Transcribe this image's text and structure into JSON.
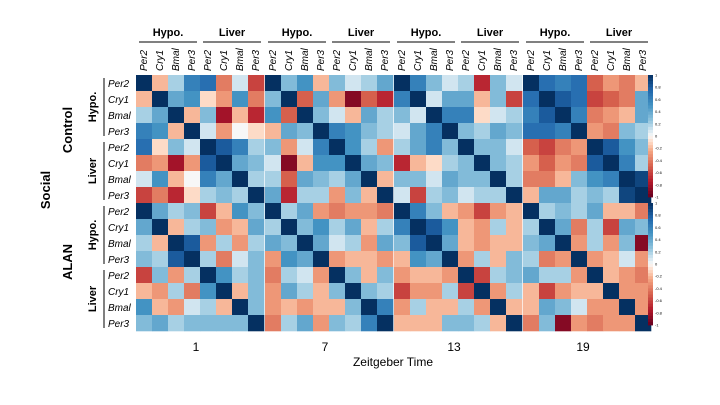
{
  "chart_data": {
    "type": "heatmap",
    "title": "",
    "xlabel": "Zeitgeber Time",
    "outer_label": "Social",
    "conditions": [
      "Control",
      "ALAN"
    ],
    "timepoints": [
      "1",
      "7",
      "13",
      "19"
    ],
    "tissues": [
      "Hypo.",
      "Liver"
    ],
    "genes": [
      "Per2",
      "Cry1",
      "Bmal",
      "Per3"
    ],
    "colorbar_ticks": [
      "1",
      "0.8",
      "0.6",
      "0.4",
      "0.2",
      "0",
      "-0.2",
      "-0.4",
      "-0.6",
      "-0.8",
      "-1"
    ],
    "color_scale": {
      "min": -1,
      "max": 1,
      "negative": "#67001f",
      "zero": "#f7f7f7",
      "positive": "#053061"
    },
    "panels": [
      {
        "condition": "Control",
        "time": "1",
        "matrix": [
          [
            1,
            -0.2,
            0.2,
            0.6,
            0.7,
            -0.4,
            0.1,
            -0.6
          ],
          [
            -0.2,
            1,
            0.4,
            0.5,
            -0.1,
            -0.3,
            0.5,
            -0.4
          ],
          [
            0.2,
            0.4,
            1,
            -0.2,
            0.3,
            -0.8,
            -0.2,
            -0.7
          ],
          [
            0.6,
            0.5,
            -0.2,
            1,
            0.1,
            -0.3,
            0,
            -0.1
          ],
          [
            0.7,
            -0.1,
            0.3,
            0.1,
            1,
            0.8,
            0.6,
            0.2
          ],
          [
            -0.4,
            -0.3,
            -0.8,
            -0.3,
            0.8,
            1,
            0.4,
            0.3
          ],
          [
            0.1,
            0.5,
            -0.2,
            0,
            0.6,
            0.4,
            1,
            0.2
          ],
          [
            -0.6,
            -0.4,
            -0.7,
            -0.1,
            0.2,
            0.3,
            0.2,
            1
          ]
        ]
      },
      {
        "condition": "Control",
        "time": "7",
        "matrix": [
          [
            1,
            0.3,
            0.5,
            -0.2,
            0.3,
            0.1,
            0.2,
            0.4
          ],
          [
            0.3,
            1,
            -0.5,
            0.4,
            -0.3,
            -0.9,
            -0.5,
            -0.7
          ],
          [
            0.5,
            -0.5,
            1,
            0.3,
            0.1,
            -0.2,
            0.4,
            0.2
          ],
          [
            -0.2,
            0.4,
            0.3,
            1,
            0.6,
            0.5,
            0.3,
            0.2
          ],
          [
            0.3,
            -0.3,
            0.1,
            0.6,
            1,
            0.5,
            0.2,
            -0.3
          ],
          [
            0.1,
            -0.9,
            -0.2,
            0.5,
            0.5,
            1,
            0.4,
            0.3
          ],
          [
            0.2,
            -0.5,
            0.4,
            0.3,
            0.2,
            0.4,
            1,
            -0.2
          ],
          [
            0.4,
            -0.7,
            0.2,
            0.2,
            -0.3,
            0.3,
            -0.2,
            1
          ]
        ]
      },
      {
        "condition": "Control",
        "time": "13",
        "matrix": [
          [
            1,
            0.6,
            0.3,
            0.1,
            0.2,
            -0.7,
            0.3,
            0.1
          ],
          [
            0.6,
            1,
            0.1,
            0.4,
            0.4,
            -0.2,
            0.3,
            -0.6
          ],
          [
            0.3,
            0.1,
            1,
            0.6,
            0.6,
            -0.1,
            0.1,
            0.2
          ],
          [
            0.1,
            0.4,
            0.6,
            1,
            0.3,
            0.2,
            0.4,
            0.3
          ],
          [
            0.2,
            0.4,
            0.6,
            0.3,
            1,
            0.3,
            0.3,
            0.1
          ],
          [
            -0.7,
            -0.2,
            -0.1,
            0.2,
            0.3,
            1,
            0.3,
            0.2
          ],
          [
            0.3,
            0.3,
            0.1,
            0.4,
            0.3,
            0.3,
            1,
            0.2
          ],
          [
            0.1,
            -0.6,
            0.2,
            0.3,
            0.1,
            0.2,
            0.2,
            1
          ]
        ]
      },
      {
        "condition": "Control",
        "time": "19",
        "matrix": [
          [
            1,
            0.7,
            0.6,
            0.7,
            -0.5,
            -0.3,
            -0.4,
            -0.2
          ],
          [
            0.7,
            1,
            0.8,
            0.7,
            -0.6,
            -0.5,
            -0.4,
            0.4
          ],
          [
            0.6,
            0.8,
            1,
            0.6,
            -0.4,
            -0.3,
            -0.2,
            0.4
          ],
          [
            0.7,
            0.7,
            0.6,
            1,
            -0.3,
            -0.4,
            0.3,
            0.2
          ],
          [
            -0.5,
            -0.6,
            -0.4,
            -0.3,
            1,
            0.8,
            0.5,
            0.3
          ],
          [
            -0.3,
            -0.5,
            -0.3,
            -0.4,
            0.8,
            1,
            0.6,
            0.2
          ],
          [
            -0.4,
            -0.4,
            -0.2,
            0.3,
            0.5,
            0.6,
            1,
            0.9
          ],
          [
            -0.2,
            0.4,
            0.4,
            0.2,
            0.3,
            0.2,
            0.9,
            1
          ]
        ]
      },
      {
        "condition": "ALAN",
        "time": "1",
        "matrix": [
          [
            1,
            0.4,
            0.2,
            0.3,
            -0.6,
            -0.2,
            0.5,
            0.3
          ],
          [
            0.4,
            1,
            -0.2,
            0.2,
            0.3,
            -0.3,
            -0.2,
            0.4
          ],
          [
            0.2,
            -0.2,
            1,
            0.8,
            -0.3,
            0.2,
            -0.3,
            0.2
          ],
          [
            0.3,
            0.2,
            0.8,
            1,
            0.2,
            -0.4,
            0.1,
            0.3
          ],
          [
            -0.6,
            0.3,
            -0.3,
            0.2,
            1,
            0.5,
            0.2,
            0.3
          ],
          [
            -0.2,
            -0.3,
            0.2,
            -0.4,
            0.5,
            1,
            -0.2,
            0.3
          ],
          [
            0.5,
            -0.2,
            -0.3,
            0.1,
            0.2,
            -0.2,
            1,
            0.3
          ],
          [
            0.3,
            0.4,
            0.2,
            0.3,
            0.3,
            0.3,
            0.3,
            1
          ]
        ]
      },
      {
        "condition": "ALAN",
        "time": "7",
        "matrix": [
          [
            1,
            0.2,
            0.4,
            -0.3,
            -0.4,
            -0.3,
            -0.3,
            -0.4
          ],
          [
            0.2,
            1,
            0.3,
            0.5,
            0.2,
            0.4,
            -0.2,
            0.2
          ],
          [
            0.4,
            0.3,
            1,
            0.4,
            0.1,
            0.2,
            -0.3,
            0.4
          ],
          [
            -0.3,
            0.5,
            0.4,
            1,
            -0.3,
            -0.2,
            -0.2,
            -0.3
          ],
          [
            -0.4,
            0.2,
            0.1,
            -0.3,
            1,
            0.3,
            -0.2,
            0.3
          ],
          [
            -0.3,
            0.4,
            0.2,
            -0.2,
            0.3,
            1,
            0.3,
            0.2
          ],
          [
            -0.3,
            -0.2,
            -0.3,
            -0.2,
            -0.2,
            0.3,
            1,
            0.6
          ],
          [
            -0.4,
            0.2,
            0.4,
            -0.3,
            0.3,
            0.2,
            0.6,
            1
          ]
        ]
      },
      {
        "condition": "ALAN",
        "time": "13",
        "matrix": [
          [
            1,
            0.6,
            0.3,
            -0.2,
            -0.3,
            -0.6,
            -0.3,
            -0.2
          ],
          [
            0.6,
            1,
            0.8,
            0.5,
            -0.2,
            -0.3,
            0.2,
            -0.2
          ],
          [
            0.3,
            0.8,
            1,
            0.4,
            -0.2,
            -0.3,
            -0.2,
            -0.2
          ],
          [
            -0.2,
            0.5,
            0.4,
            1,
            -0.3,
            0.2,
            -0.2,
            0.3
          ],
          [
            -0.3,
            -0.2,
            -0.2,
            -0.3,
            1,
            -0.6,
            0.2,
            0.3
          ],
          [
            -0.6,
            -0.3,
            -0.3,
            0.2,
            -0.6,
            1,
            -0.3,
            0.2
          ],
          [
            -0.3,
            0.2,
            -0.2,
            -0.2,
            0.2,
            -0.3,
            1,
            -0.2
          ],
          [
            -0.2,
            -0.2,
            -0.2,
            0.3,
            0.3,
            0.2,
            -0.2,
            1
          ]
        ]
      },
      {
        "condition": "ALAN",
        "time": "19",
        "matrix": [
          [
            1,
            0.2,
            0.3,
            0.2,
            0.4,
            -0.2,
            -0.2,
            -0.4
          ],
          [
            0.2,
            1,
            0.4,
            -0.4,
            0.2,
            -0.6,
            0.4,
            0.3
          ],
          [
            0.3,
            0.4,
            1,
            -0.3,
            0.2,
            -0.3,
            0.3,
            -0.9
          ],
          [
            0.2,
            -0.4,
            -0.3,
            1,
            -0.3,
            -0.2,
            0.1,
            -0.3
          ],
          [
            0.4,
            0.2,
            0.2,
            -0.3,
            1,
            -0.2,
            -0.3,
            -0.4
          ],
          [
            -0.2,
            -0.6,
            -0.3,
            -0.2,
            -0.2,
            1,
            -0.3,
            -0.3
          ],
          [
            -0.2,
            0.4,
            0.3,
            0.1,
            -0.3,
            -0.3,
            1,
            -0.3
          ],
          [
            -0.4,
            0.3,
            -0.9,
            -0.3,
            -0.4,
            -0.3,
            -0.3,
            1
          ]
        ]
      }
    ]
  }
}
